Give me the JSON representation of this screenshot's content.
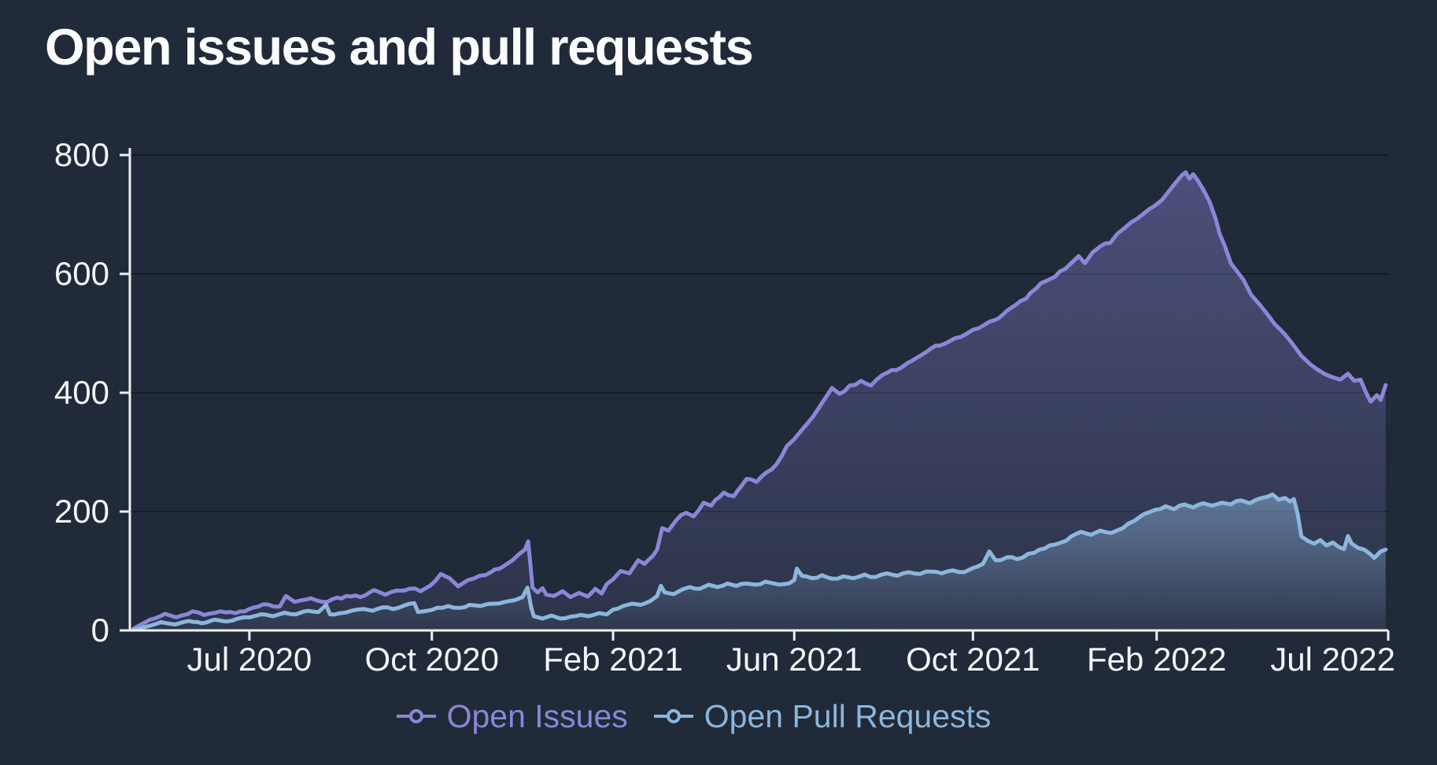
{
  "page": {
    "background": "#212a38"
  },
  "header": {
    "title": "Open issues and pull requests"
  },
  "chart_data": {
    "type": "area",
    "title": "Open issues and pull requests",
    "grid": "horizontal-only",
    "axis_color": "#edf1f6",
    "grid_color": "rgba(6,10,20,0.45)",
    "label_color": "#f3f5f8",
    "x_axis": {
      "ticks": [
        {
          "label": "Jul 2020",
          "t": 0.095
        },
        {
          "label": "Oct 2020",
          "t": 0.24
        },
        {
          "label": "Feb 2021",
          "t": 0.384
        },
        {
          "label": "Jun 2021",
          "t": 0.528
        },
        {
          "label": "Oct 2021",
          "t": 0.67
        },
        {
          "label": "Feb 2022",
          "t": 0.816
        },
        {
          "label": "Jul 2022",
          "t": 1.0
        }
      ]
    },
    "y_axis": {
      "ticks": [
        0,
        200,
        400,
        600,
        800
      ],
      "range": [
        0,
        800
      ]
    },
    "legend": {
      "position": "bottom",
      "entries": [
        {
          "label": "Open Issues",
          "color": "#8a87d8"
        },
        {
          "label": "Open Pull Requests",
          "color": "#8cb6dc"
        }
      ]
    },
    "series": [
      {
        "name": "Open Issues",
        "color": "#8a87d8",
        "fill_top": "rgba(136,132,216,0.42)",
        "fill_bottom": "rgba(136,132,216,0.10)",
        "noise": 3.0,
        "points": [
          [
            0.003,
            3
          ],
          [
            0.016,
            18
          ],
          [
            0.028,
            28
          ],
          [
            0.037,
            22
          ],
          [
            0.05,
            32
          ],
          [
            0.059,
            26
          ],
          [
            0.072,
            32
          ],
          [
            0.084,
            29
          ],
          [
            0.095,
            36
          ],
          [
            0.106,
            44
          ],
          [
            0.119,
            40
          ],
          [
            0.124,
            58
          ],
          [
            0.131,
            48
          ],
          [
            0.144,
            54
          ],
          [
            0.157,
            48
          ],
          [
            0.172,
            58
          ],
          [
            0.183,
            56
          ],
          [
            0.194,
            68
          ],
          [
            0.203,
            60
          ],
          [
            0.212,
            67
          ],
          [
            0.222,
            70
          ],
          [
            0.231,
            66
          ],
          [
            0.239,
            76
          ],
          [
            0.247,
            95
          ],
          [
            0.254,
            88
          ],
          [
            0.261,
            74
          ],
          [
            0.269,
            85
          ],
          [
            0.278,
            92
          ],
          [
            0.287,
            98
          ],
          [
            0.297,
            108
          ],
          [
            0.304,
            118
          ],
          [
            0.309,
            128
          ],
          [
            0.314,
            136
          ],
          [
            0.3165,
            150
          ],
          [
            0.318,
            118
          ],
          [
            0.32,
            72
          ],
          [
            0.324,
            64
          ],
          [
            0.328,
            71
          ],
          [
            0.331,
            60
          ],
          [
            0.337,
            58
          ],
          [
            0.344,
            66
          ],
          [
            0.35,
            56
          ],
          [
            0.357,
            63
          ],
          [
            0.364,
            57
          ],
          [
            0.37,
            70
          ],
          [
            0.375,
            62
          ],
          [
            0.379,
            78
          ],
          [
            0.384,
            86
          ],
          [
            0.39,
            100
          ],
          [
            0.397,
            96
          ],
          [
            0.404,
            118
          ],
          [
            0.409,
            112
          ],
          [
            0.419,
            136
          ],
          [
            0.423,
            172
          ],
          [
            0.428,
            168
          ],
          [
            0.434,
            185
          ],
          [
            0.442,
            198
          ],
          [
            0.448,
            192
          ],
          [
            0.456,
            215
          ],
          [
            0.462,
            210
          ],
          [
            0.472,
            232
          ],
          [
            0.48,
            226
          ],
          [
            0.49,
            255
          ],
          [
            0.498,
            250
          ],
          [
            0.506,
            266
          ],
          [
            0.514,
            280
          ],
          [
            0.522,
            310
          ],
          [
            0.528,
            322
          ],
          [
            0.535,
            340
          ],
          [
            0.543,
            360
          ],
          [
            0.553,
            392
          ],
          [
            0.558,
            408
          ],
          [
            0.564,
            398
          ],
          [
            0.572,
            412
          ],
          [
            0.581,
            420
          ],
          [
            0.589,
            412
          ],
          [
            0.598,
            430
          ],
          [
            0.609,
            438
          ],
          [
            0.618,
            450
          ],
          [
            0.628,
            462
          ],
          [
            0.637,
            475
          ],
          [
            0.647,
            482
          ],
          [
            0.656,
            492
          ],
          [
            0.664,
            498
          ],
          [
            0.67,
            506
          ],
          [
            0.679,
            514
          ],
          [
            0.687,
            522
          ],
          [
            0.697,
            538
          ],
          [
            0.704,
            548
          ],
          [
            0.712,
            558
          ],
          [
            0.72,
            575
          ],
          [
            0.728,
            588
          ],
          [
            0.735,
            595
          ],
          [
            0.743,
            608
          ],
          [
            0.75,
            622
          ],
          [
            0.754,
            630
          ],
          [
            0.759,
            618
          ],
          [
            0.765,
            636
          ],
          [
            0.771,
            646
          ],
          [
            0.779,
            652
          ],
          [
            0.785,
            668
          ],
          [
            0.791,
            678
          ],
          [
            0.8,
            692
          ],
          [
            0.806,
            702
          ],
          [
            0.814,
            714
          ],
          [
            0.82,
            724
          ],
          [
            0.826,
            740
          ],
          [
            0.832,
            756
          ],
          [
            0.836,
            766
          ],
          [
            0.839,
            771
          ],
          [
            0.842,
            760
          ],
          [
            0.845,
            768
          ],
          [
            0.849,
            756
          ],
          [
            0.853,
            742
          ],
          [
            0.858,
            722
          ],
          [
            0.863,
            692
          ],
          [
            0.866,
            668
          ],
          [
            0.87,
            648
          ],
          [
            0.875,
            618
          ],
          [
            0.88,
            604
          ],
          [
            0.885,
            590
          ],
          [
            0.891,
            565
          ],
          [
            0.898,
            548
          ],
          [
            0.904,
            532
          ],
          [
            0.91,
            515
          ],
          [
            0.918,
            498
          ],
          [
            0.924,
            482
          ],
          [
            0.931,
            462
          ],
          [
            0.938,
            448
          ],
          [
            0.943,
            440
          ],
          [
            0.949,
            432
          ],
          [
            0.956,
            426
          ],
          [
            0.962,
            422
          ],
          [
            0.968,
            432
          ],
          [
            0.973,
            420
          ],
          [
            0.978,
            422
          ],
          [
            0.982,
            402
          ],
          [
            0.986,
            385
          ],
          [
            0.991,
            396
          ],
          [
            0.994,
            388
          ],
          [
            0.998,
            413
          ]
        ]
      },
      {
        "name": "Open Pull Requests",
        "color": "#8cb6dc",
        "fill_top": "rgba(140,182,220,0.50)",
        "fill_bottom": "rgba(140,182,220,0.03)",
        "noise": 2.3,
        "points": [
          [
            0.003,
            1
          ],
          [
            0.016,
            8
          ],
          [
            0.025,
            14
          ],
          [
            0.036,
            10
          ],
          [
            0.047,
            16
          ],
          [
            0.057,
            12
          ],
          [
            0.067,
            18
          ],
          [
            0.077,
            15
          ],
          [
            0.086,
            20
          ],
          [
            0.095,
            22
          ],
          [
            0.104,
            27
          ],
          [
            0.114,
            24
          ],
          [
            0.123,
            30
          ],
          [
            0.132,
            27
          ],
          [
            0.142,
            33
          ],
          [
            0.15,
            31
          ],
          [
            0.156,
            43
          ],
          [
            0.159,
            27
          ],
          [
            0.167,
            29
          ],
          [
            0.176,
            33
          ],
          [
            0.186,
            36
          ],
          [
            0.193,
            33
          ],
          [
            0.201,
            39
          ],
          [
            0.209,
            36
          ],
          [
            0.217,
            41
          ],
          [
            0.226,
            46
          ],
          [
            0.229,
            31
          ],
          [
            0.236,
            33
          ],
          [
            0.244,
            38
          ],
          [
            0.253,
            41
          ],
          [
            0.262,
            38
          ],
          [
            0.27,
            43
          ],
          [
            0.279,
            41
          ],
          [
            0.289,
            45
          ],
          [
            0.298,
            48
          ],
          [
            0.306,
            51
          ],
          [
            0.312,
            56
          ],
          [
            0.316,
            72
          ],
          [
            0.319,
            38
          ],
          [
            0.321,
            24
          ],
          [
            0.328,
            20
          ],
          [
            0.335,
            25
          ],
          [
            0.342,
            20
          ],
          [
            0.35,
            23
          ],
          [
            0.358,
            26
          ],
          [
            0.365,
            24
          ],
          [
            0.373,
            29
          ],
          [
            0.379,
            27
          ],
          [
            0.384,
            35
          ],
          [
            0.392,
            41
          ],
          [
            0.399,
            45
          ],
          [
            0.406,
            43
          ],
          [
            0.414,
            50
          ],
          [
            0.419,
            58
          ],
          [
            0.422,
            75
          ],
          [
            0.425,
            64
          ],
          [
            0.432,
            61
          ],
          [
            0.439,
            69
          ],
          [
            0.445,
            73
          ],
          [
            0.453,
            70
          ],
          [
            0.46,
            77
          ],
          [
            0.467,
            73
          ],
          [
            0.475,
            79
          ],
          [
            0.482,
            75
          ],
          [
            0.49,
            79
          ],
          [
            0.497,
            77
          ],
          [
            0.505,
            82
          ],
          [
            0.512,
            79
          ],
          [
            0.52,
            78
          ],
          [
            0.528,
            85
          ],
          [
            0.53,
            104
          ],
          [
            0.534,
            92
          ],
          [
            0.542,
            88
          ],
          [
            0.55,
            93
          ],
          [
            0.558,
            87
          ],
          [
            0.567,
            91
          ],
          [
            0.575,
            88
          ],
          [
            0.584,
            94
          ],
          [
            0.593,
            90
          ],
          [
            0.602,
            96
          ],
          [
            0.61,
            92
          ],
          [
            0.619,
            98
          ],
          [
            0.628,
            95
          ],
          [
            0.637,
            99
          ],
          [
            0.645,
            96
          ],
          [
            0.654,
            101
          ],
          [
            0.663,
            98
          ],
          [
            0.67,
            105
          ],
          [
            0.678,
            112
          ],
          [
            0.683,
            133
          ],
          [
            0.688,
            118
          ],
          [
            0.697,
            123
          ],
          [
            0.705,
            120
          ],
          [
            0.714,
            129
          ],
          [
            0.723,
            136
          ],
          [
            0.731,
            143
          ],
          [
            0.74,
            148
          ],
          [
            0.748,
            158
          ],
          [
            0.756,
            166
          ],
          [
            0.764,
            161
          ],
          [
            0.771,
            168
          ],
          [
            0.78,
            164
          ],
          [
            0.789,
            172
          ],
          [
            0.798,
            184
          ],
          [
            0.806,
            196
          ],
          [
            0.815,
            203
          ],
          [
            0.823,
            209
          ],
          [
            0.83,
            204
          ],
          [
            0.838,
            212
          ],
          [
            0.845,
            207
          ],
          [
            0.853,
            214
          ],
          [
            0.86,
            210
          ],
          [
            0.868,
            215
          ],
          [
            0.875,
            212
          ],
          [
            0.883,
            219
          ],
          [
            0.89,
            214
          ],
          [
            0.898,
            222
          ],
          [
            0.904,
            225
          ],
          [
            0.908,
            229
          ],
          [
            0.913,
            220
          ],
          [
            0.918,
            223
          ],
          [
            0.922,
            217
          ],
          [
            0.925,
            221
          ],
          [
            0.928,
            196
          ],
          [
            0.931,
            158
          ],
          [
            0.936,
            151
          ],
          [
            0.941,
            146
          ],
          [
            0.946,
            152
          ],
          [
            0.951,
            143
          ],
          [
            0.956,
            148
          ],
          [
            0.961,
            140
          ],
          [
            0.965,
            137
          ],
          [
            0.968,
            159
          ],
          [
            0.971,
            146
          ],
          [
            0.976,
            139
          ],
          [
            0.981,
            136
          ],
          [
            0.986,
            128
          ],
          [
            0.989,
            122
          ],
          [
            0.994,
            133
          ],
          [
            0.998,
            136
          ]
        ]
      }
    ]
  }
}
